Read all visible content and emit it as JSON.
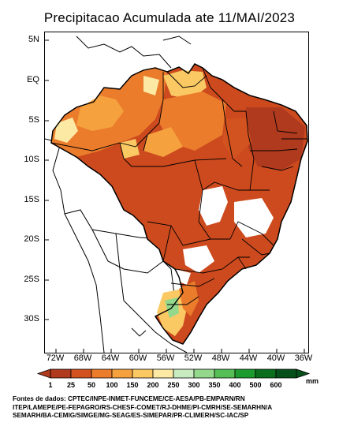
{
  "title": "Precipitacao Acumulada ate 11/MAI/2023",
  "lat_ticks": [
    "5N",
    "EQ",
    "5S",
    "10S",
    "15S",
    "20S",
    "25S",
    "30S"
  ],
  "lon_ticks": [
    "72W",
    "68W",
    "64W",
    "60W",
    "56W",
    "52W",
    "48W",
    "44W",
    "40W",
    "36W"
  ],
  "legend": {
    "unit": "mm",
    "labels": [
      "1",
      "25",
      "50",
      "100",
      "150",
      "200",
      "250",
      "300",
      "350",
      "400",
      "500",
      "600"
    ],
    "colors": [
      "#b03a1e",
      "#d2531f",
      "#ea7c2c",
      "#f5a23e",
      "#fbc963",
      "#fce9a4",
      "#c8ebc0",
      "#93d88b",
      "#55be55",
      "#1e9b2e",
      "#0a6e1c",
      "#05501a"
    ]
  },
  "sources": [
    "Fontes de dados: CPTEC/INPE-INMET-FUNCEME/CE-AESA/PB-EMPARN/RN",
    "ITEP/LAMEPE/PE-FEPAGRO/RS-CHESF-COMET/RJ-DHME/PI-CMRH/SE-SEMARHN/A",
    "SEMARH/BA-CEMIG/SIMGE/MG-SEAG/ES-SIMEPAR/PR-CLIMERH/SC-IAC/SP"
  ]
}
